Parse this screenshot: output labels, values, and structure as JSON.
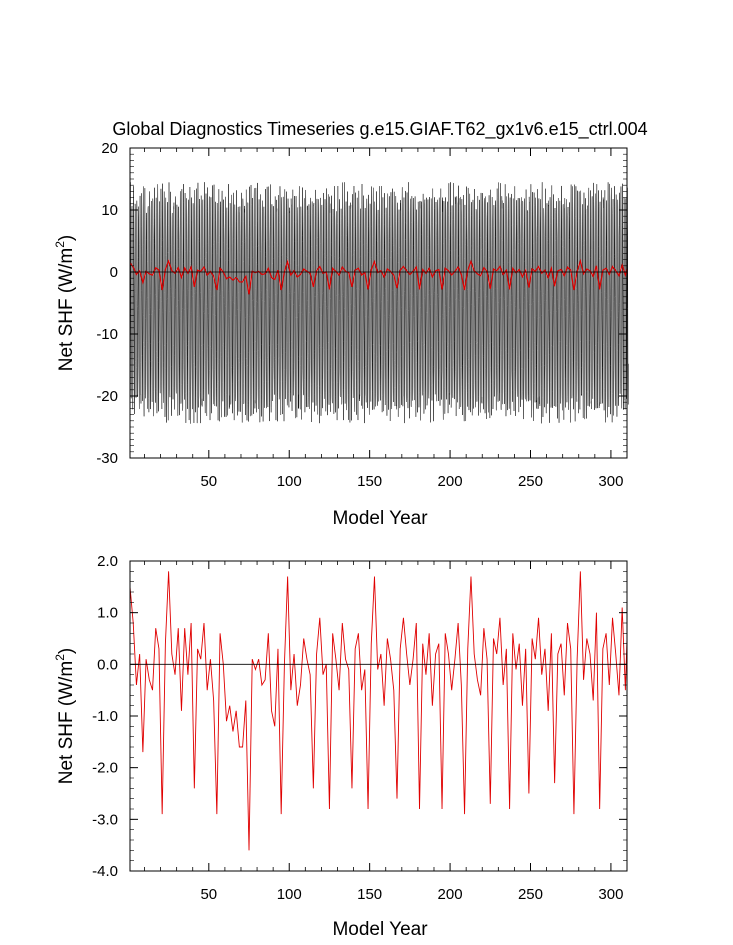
{
  "chart_data": [
    {
      "type": "line",
      "title": "Global Diagnostics Timeseries g.e15.GIAF.T62_gx1v6.e15_ctrl.004",
      "xlabel": "Model Year",
      "ylabel": "Net SHF (W/m",
      "ylabel_sup": "2",
      "ylabel_end": ")",
      "xlim": [
        1,
        310
      ],
      "ylim": [
        -30,
        20
      ],
      "xticks": [
        50,
        100,
        150,
        200,
        250,
        300
      ],
      "yticks": [
        -30,
        -20,
        -10,
        0,
        10,
        20
      ],
      "xtick_labels": [
        "50",
        "100",
        "150",
        "200",
        "250",
        "300"
      ],
      "ytick_labels": [
        "-30",
        "-20",
        "-10",
        "0",
        "10",
        "20"
      ],
      "reference_line": 0,
      "series": [
        {
          "color": "#000000",
          "description_range": [
            -26.5,
            16.5
          ],
          "monthly_cycle_amplitude": [
            -22,
            12
          ]
        },
        {
          "color": "#e00000"
        }
      ]
    },
    {
      "type": "line",
      "xlabel": "Model Year",
      "ylabel": "Net SHF (W/m",
      "ylabel_sup": "2",
      "ylabel_end": ")",
      "xlim": [
        1,
        310
      ],
      "ylim": [
        -4.0,
        2.0
      ],
      "xticks": [
        50,
        100,
        150,
        200,
        250,
        300
      ],
      "yticks": [
        -4.0,
        -3.0,
        -2.0,
        -1.0,
        0.0,
        1.0,
        2.0
      ],
      "xtick_labels": [
        "50",
        "100",
        "150",
        "200",
        "250",
        "300"
      ],
      "ytick_labels": [
        "-4.0",
        "-3.0",
        "-2.0",
        "-1.0",
        "0.0",
        "1.0",
        "2.0"
      ],
      "reference_line": 0,
      "series": [
        {
          "color": "#e00000",
          "x": [
            1,
            3,
            5,
            7,
            9,
            11,
            13,
            15,
            17,
            19,
            21,
            23,
            25,
            27,
            29,
            31,
            33,
            35,
            37,
            39,
            41,
            43,
            45,
            47,
            49,
            51,
            53,
            55,
            57,
            59,
            61,
            63,
            65,
            67,
            69,
            71,
            73,
            75,
            77,
            79,
            81,
            83,
            85,
            87,
            89,
            91,
            93,
            95,
            97,
            99,
            101,
            103,
            105,
            107,
            109,
            111,
            113,
            115,
            117,
            119,
            121,
            123,
            125,
            127,
            129,
            131,
            133,
            135,
            137,
            139,
            141,
            143,
            145,
            147,
            149,
            151,
            153,
            155,
            157,
            159,
            161,
            163,
            165,
            167,
            169,
            171,
            173,
            175,
            177,
            179,
            181,
            183,
            185,
            187,
            189,
            191,
            193,
            195,
            197,
            199,
            201,
            203,
            205,
            207,
            209,
            211,
            213,
            215,
            217,
            219,
            221,
            223,
            225,
            227,
            229,
            231,
            233,
            235,
            237,
            239,
            241,
            243,
            245,
            247,
            249,
            251,
            253,
            255,
            257,
            259,
            261,
            263,
            265,
            267,
            269,
            271,
            273,
            275,
            277,
            279,
            281,
            283,
            285,
            287,
            289,
            291,
            293,
            295,
            297,
            299,
            301,
            303,
            305,
            307,
            309,
            310
          ],
          "values": [
            1.5,
            0.8,
            -0.4,
            0.2,
            -1.7,
            0.1,
            -0.3,
            -0.5,
            0.7,
            0.3,
            -2.9,
            0.4,
            1.8,
            0.2,
            -0.2,
            0.7,
            -0.9,
            0.7,
            -0.2,
            0.8,
            -2.4,
            0.3,
            0.1,
            0.8,
            -0.5,
            0.1,
            -0.7,
            -2.9,
            0.6,
            0.0,
            -1.1,
            -0.8,
            -1.3,
            -0.9,
            -1.6,
            -1.6,
            -0.7,
            -3.6,
            0.1,
            -0.1,
            0.1,
            -0.4,
            -0.3,
            0.6,
            -0.9,
            -1.2,
            0.3,
            -2.9,
            0.0,
            1.7,
            -0.5,
            0.2,
            -0.8,
            -0.4,
            0.5,
            0.1,
            -0.2,
            -2.4,
            0.2,
            0.9,
            -0.2,
            0.0,
            -2.8,
            0.6,
            0.1,
            -0.5,
            0.8,
            0.1,
            -0.1,
            -2.4,
            0.3,
            0.6,
            -0.5,
            -0.1,
            -2.8,
            0.4,
            1.7,
            -0.1,
            0.2,
            -0.8,
            0.5,
            0.1,
            -0.5,
            -2.6,
            0.3,
            0.9,
            0.2,
            -0.4,
            0.1,
            0.8,
            -2.8,
            0.4,
            -0.2,
            0.6,
            -0.8,
            0.2,
            0.4,
            -2.8,
            0.6,
            0.2,
            -0.5,
            0.1,
            0.8,
            -0.4,
            -2.9,
            0.3,
            1.7,
            0.2,
            -0.3,
            -0.6,
            0.7,
            0.1,
            -2.7,
            0.5,
            0.2,
            0.9,
            -0.4,
            0.3,
            -2.8,
            0.6,
            -0.1,
            0.4,
            -0.8,
            0.3,
            -2.5,
            0.5,
            0.1,
            0.9,
            -0.2,
            0.3,
            -0.9,
            0.6,
            -2.3,
            0.2,
            0.4,
            -0.6,
            0.8,
            0.3,
            -2.9,
            0.1,
            1.8,
            -0.3,
            0.5,
            0.2,
            -0.7,
            1.0,
            -2.8,
            0.3,
            0.6,
            -0.4,
            0.9,
            0.2,
            -0.6,
            1.1,
            -0.5,
            0.5
          ]
        }
      ]
    }
  ]
}
